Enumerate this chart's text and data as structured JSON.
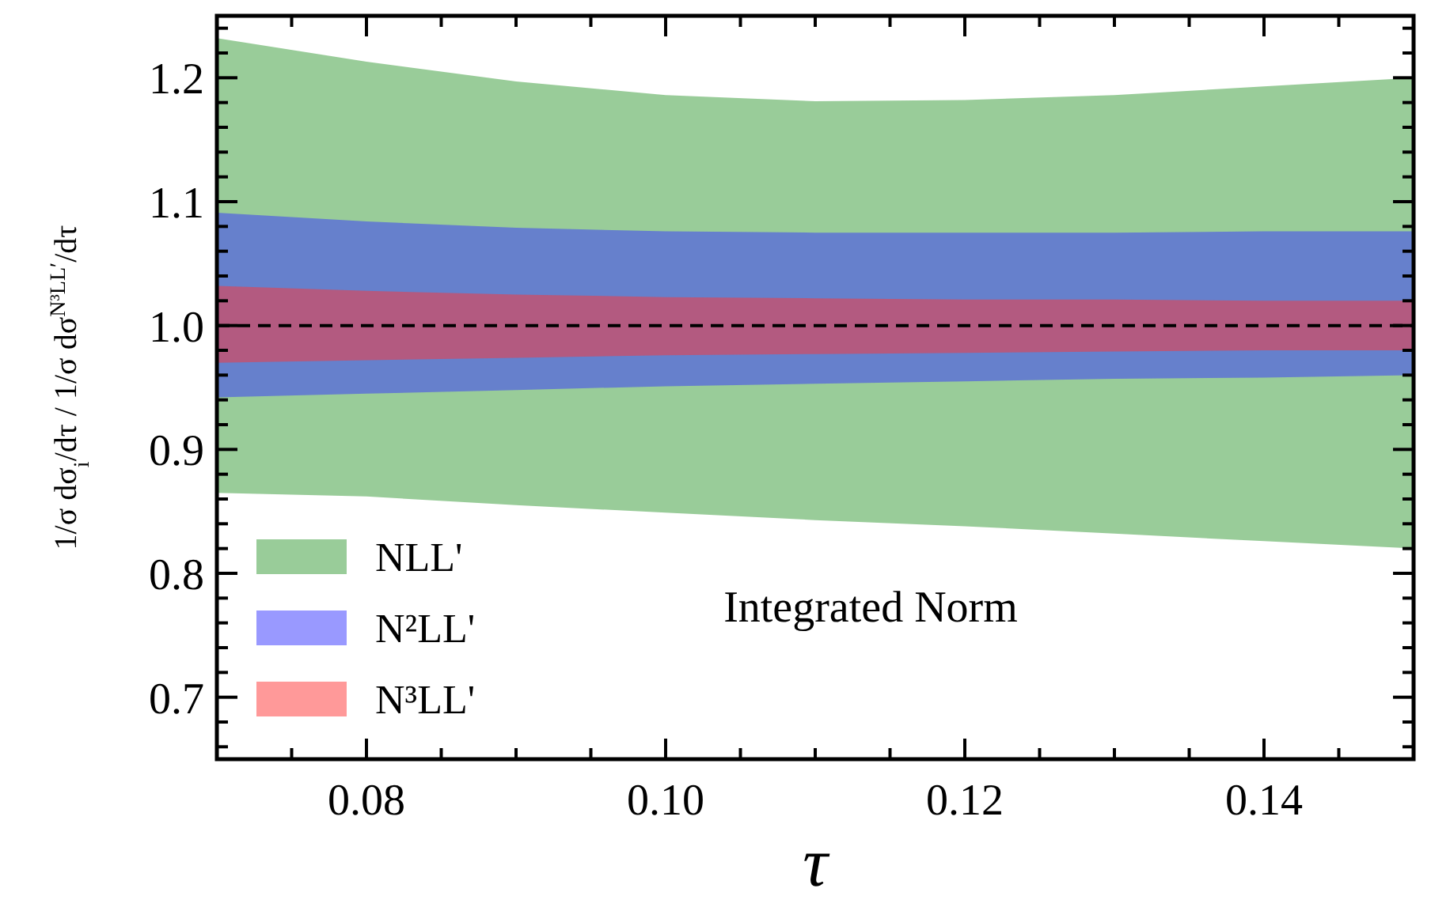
{
  "chart_data": {
    "type": "area",
    "xlabel": "τ",
    "ylabel": "1/σ dσ$_{i}$/dτ / 1/σ dσ$^{N³LL′}$/dτ",
    "x": [
      0.07,
      0.08,
      0.09,
      0.1,
      0.11,
      0.12,
      0.13,
      0.14,
      0.15
    ],
    "series": [
      {
        "name": "NLL'",
        "color": "#339933",
        "lower": [
          0.865,
          0.862,
          0.855,
          0.849,
          0.843,
          0.838,
          0.832,
          0.826,
          0.82
        ],
        "upper": [
          1.232,
          1.213,
          1.197,
          1.186,
          1.181,
          1.182,
          1.186,
          1.193,
          1.2
        ],
        "values": [
          null,
          null,
          null,
          null,
          null,
          null,
          null,
          null,
          null
        ]
      },
      {
        "name": "N²LL'",
        "color": "#3333ff",
        "lower": [
          0.942,
          0.945,
          0.948,
          0.951,
          0.953,
          0.955,
          0.957,
          0.958,
          0.96
        ],
        "upper": [
          1.091,
          1.084,
          1.079,
          1.076,
          1.075,
          1.075,
          1.075,
          1.076,
          1.076
        ],
        "values": [
          null,
          null,
          null,
          null,
          null,
          null,
          null,
          null,
          null
        ]
      },
      {
        "name": "N³LL'",
        "color": "#ff3333",
        "lower": [
          0.97,
          0.972,
          0.974,
          0.976,
          0.977,
          0.978,
          0.979,
          0.98,
          0.98
        ],
        "upper": [
          1.032,
          1.028,
          1.025,
          1.023,
          1.022,
          1.021,
          1.021,
          1.02,
          1.02
        ],
        "values": [
          null,
          null,
          null,
          null,
          null,
          null,
          null,
          null,
          null
        ]
      }
    ],
    "xlim": [
      0.07,
      0.15
    ],
    "xticks": [
      {
        "value": 0.075,
        "label": null
      },
      {
        "value": 0.08,
        "label": "0.08"
      },
      {
        "value": 0.085,
        "label": null
      },
      {
        "value": 0.09,
        "label": null
      },
      {
        "value": 0.095,
        "label": null
      },
      {
        "value": 0.1,
        "label": "0.10"
      },
      {
        "value": 0.105,
        "label": null
      },
      {
        "value": 0.11,
        "label": null
      },
      {
        "value": 0.115,
        "label": null
      },
      {
        "value": 0.12,
        "label": "0.12"
      },
      {
        "value": 0.125,
        "label": null
      },
      {
        "value": 0.13,
        "label": null
      },
      {
        "value": 0.135,
        "label": null
      },
      {
        "value": 0.14,
        "label": "0.14"
      },
      {
        "value": 0.145,
        "label": null
      }
    ],
    "ylim": [
      0.65,
      1.25
    ],
    "yticks": [
      {
        "value": 0.66,
        "label": null
      },
      {
        "value": 0.68,
        "label": null
      },
      {
        "value": 0.7,
        "label": "0.7"
      },
      {
        "value": 0.72,
        "label": null
      },
      {
        "value": 0.74,
        "label": null
      },
      {
        "value": 0.76,
        "label": null
      },
      {
        "value": 0.78,
        "label": null
      },
      {
        "value": 0.8,
        "label": "0.8"
      },
      {
        "value": 0.82,
        "label": null
      },
      {
        "value": 0.84,
        "label": null
      },
      {
        "value": 0.86,
        "label": null
      },
      {
        "value": 0.88,
        "label": null
      },
      {
        "value": 0.9,
        "label": "0.9"
      },
      {
        "value": 0.92,
        "label": null
      },
      {
        "value": 0.94,
        "label": null
      },
      {
        "value": 0.96,
        "label": null
      },
      {
        "value": 0.98,
        "label": null
      },
      {
        "value": 1.0,
        "label": "1.0"
      },
      {
        "value": 1.02,
        "label": null
      },
      {
        "value": 1.04,
        "label": null
      },
      {
        "value": 1.06,
        "label": null
      },
      {
        "value": 1.08,
        "label": null
      },
      {
        "value": 1.1,
        "label": "1.1"
      },
      {
        "value": 1.12,
        "label": null
      },
      {
        "value": 1.14,
        "label": null
      },
      {
        "value": 1.16,
        "label": null
      },
      {
        "value": 1.18,
        "label": null
      },
      {
        "value": 1.2,
        "label": "1.2"
      },
      {
        "value": 1.22,
        "label": null
      },
      {
        "value": 1.24,
        "label": null
      }
    ],
    "ref_lines": [
      {
        "axis": "y",
        "value": 1.0,
        "color": "#000000",
        "line_style": "dashed"
      }
    ],
    "annotations": [
      "Integrated Norm"
    ],
    "legend": "bottom left",
    "grid": false
  }
}
